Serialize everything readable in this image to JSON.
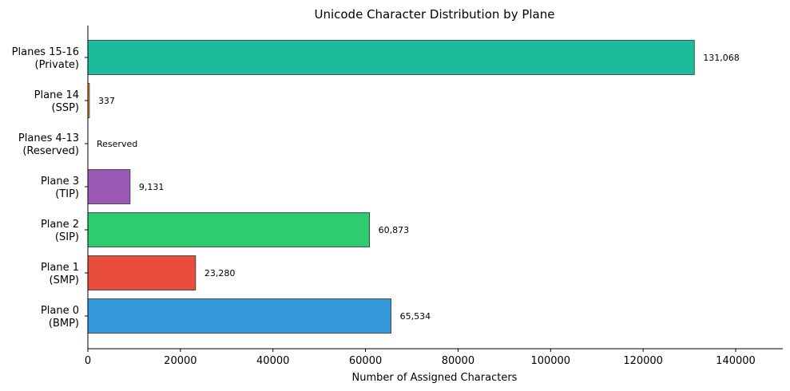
{
  "chart_data": {
    "type": "bar",
    "orientation": "horizontal",
    "title": "Unicode Character Distribution by Plane",
    "xlabel": "Number of Assigned Characters",
    "ylabel": "",
    "xlim": [
      0,
      150000
    ],
    "xticks": [
      0,
      20000,
      40000,
      60000,
      80000,
      100000,
      120000,
      140000
    ],
    "xtick_labels": [
      "0",
      "20000",
      "40000",
      "60000",
      "80000",
      "100000",
      "120000",
      "140000"
    ],
    "grid": false,
    "legend": null,
    "categories": [
      [
        "Plane 0",
        "(BMP)"
      ],
      [
        "Plane 1",
        "(SMP)"
      ],
      [
        "Plane 2",
        "(SIP)"
      ],
      [
        "Plane 3",
        "(TIP)"
      ],
      [
        "Planes 4-13",
        "(Reserved)"
      ],
      [
        "Plane 14",
        "(SSP)"
      ],
      [
        "Planes 15-16",
        "(Private)"
      ]
    ],
    "values": [
      65534,
      23280,
      60873,
      9131,
      0,
      337,
      131068
    ],
    "value_labels": [
      "65,534",
      "23,280",
      "60,873",
      "9,131",
      "Reserved",
      "337",
      "131,068"
    ],
    "colors": [
      "#3498db",
      "#e74c3c",
      "#2ecc71",
      "#9b59b6",
      "#95a5a6",
      "#f39c12",
      "#1abc9c"
    ]
  }
}
